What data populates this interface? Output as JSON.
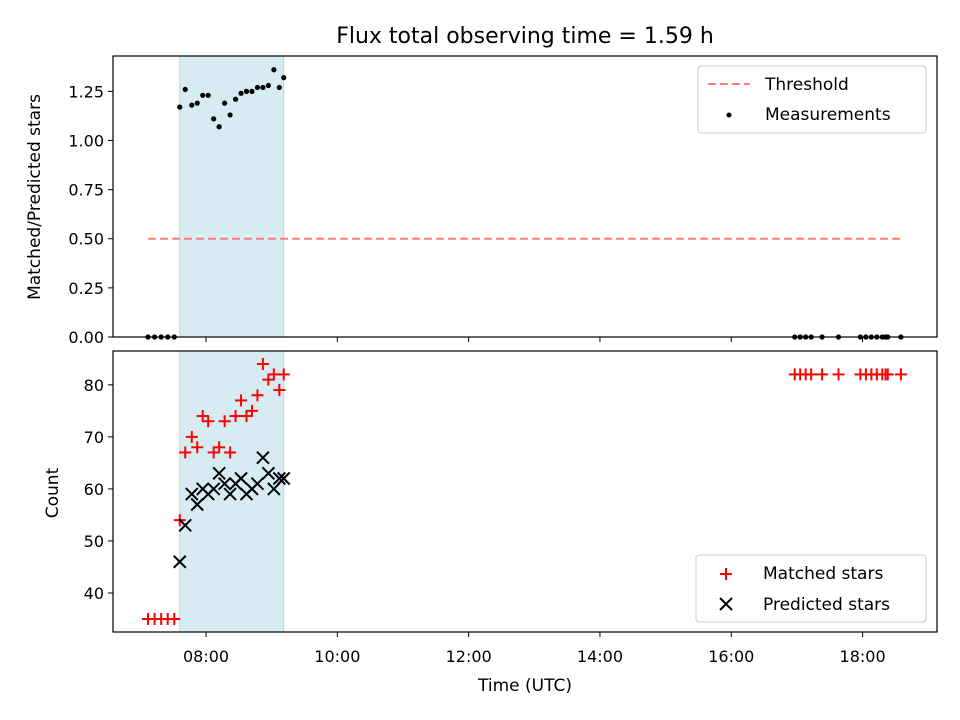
{
  "chart_data": [
    {
      "type": "scatter",
      "title": "Flux total observing time = 1.59 h",
      "xlabel": "",
      "ylabel": "Matched/Predicted stars",
      "xlim": [
        "06:35",
        "19:08"
      ],
      "ylim": [
        0,
        1.43
      ],
      "yticks": [
        "0.00",
        "0.25",
        "0.50",
        "0.75",
        "1.00",
        "1.25"
      ],
      "ytick_values": [
        0,
        0.25,
        0.5,
        0.75,
        1.0,
        1.25
      ],
      "xtick_values": [
        "08:00",
        "10:00",
        "12:00",
        "14:00",
        "16:00",
        "18:00"
      ],
      "legend_position": "top-right",
      "shaded_interval": [
        "07:36",
        "09:11"
      ],
      "threshold": {
        "name": "Threshold",
        "y": 0.5,
        "x_range": [
          "07:07",
          "18:35"
        ],
        "color": "#ff7f7f",
        "style": "dashed"
      },
      "series": [
        {
          "name": "Measurements",
          "color": "#000000",
          "marker": "dot",
          "points": [
            [
              "07:07",
              0
            ],
            [
              "07:13",
              0
            ],
            [
              "07:19",
              0
            ],
            [
              "07:25",
              0
            ],
            [
              "07:31",
              0
            ],
            [
              "07:36",
              1.17
            ],
            [
              "07:41",
              1.26
            ],
            [
              "07:47",
              1.18
            ],
            [
              "07:52",
              1.19
            ],
            [
              "07:57",
              1.23
            ],
            [
              "08:02",
              1.23
            ],
            [
              "08:07",
              1.11
            ],
            [
              "08:12",
              1.07
            ],
            [
              "08:17",
              1.19
            ],
            [
              "08:22",
              1.13
            ],
            [
              "08:27",
              1.21
            ],
            [
              "08:32",
              1.24
            ],
            [
              "08:37",
              1.25
            ],
            [
              "08:42",
              1.25
            ],
            [
              "08:47",
              1.27
            ],
            [
              "08:52",
              1.27
            ],
            [
              "08:57",
              1.28
            ],
            [
              "09:02",
              1.36
            ],
            [
              "09:07",
              1.27
            ],
            [
              "09:11",
              1.32
            ],
            [
              "16:58",
              0
            ],
            [
              "17:03",
              0
            ],
            [
              "17:08",
              0
            ],
            [
              "17:13",
              0
            ],
            [
              "17:23",
              0
            ],
            [
              "17:38",
              0
            ],
            [
              "17:58",
              0
            ],
            [
              "18:03",
              0
            ],
            [
              "18:08",
              0
            ],
            [
              "18:13",
              0
            ],
            [
              "18:18",
              0
            ],
            [
              "18:21",
              0
            ],
            [
              "18:23",
              0
            ],
            [
              "18:35",
              0
            ]
          ]
        }
      ]
    },
    {
      "type": "scatter",
      "title": "",
      "xlabel": "Time (UTC)",
      "ylabel": "Count",
      "xlim": [
        "06:35",
        "19:08"
      ],
      "ylim": [
        32.5,
        86.5
      ],
      "yticks": [
        "40",
        "50",
        "60",
        "70",
        "80"
      ],
      "ytick_values": [
        40,
        50,
        60,
        70,
        80
      ],
      "xticks": [
        "08:00",
        "10:00",
        "12:00",
        "14:00",
        "16:00",
        "18:00"
      ],
      "xtick_values": [
        "08:00",
        "10:00",
        "12:00",
        "14:00",
        "16:00",
        "18:00"
      ],
      "legend_position": "bottom-right",
      "shaded_interval": [
        "07:36",
        "09:11"
      ],
      "series": [
        {
          "name": "Matched stars",
          "color": "#ff0000",
          "marker": "plus",
          "points": [
            [
              "07:07",
              35
            ],
            [
              "07:13",
              35
            ],
            [
              "07:19",
              35
            ],
            [
              "07:25",
              35
            ],
            [
              "07:31",
              35
            ],
            [
              "07:36",
              54
            ],
            [
              "07:41",
              67
            ],
            [
              "07:47",
              70
            ],
            [
              "07:52",
              68
            ],
            [
              "07:57",
              74
            ],
            [
              "08:02",
              73
            ],
            [
              "08:07",
              67
            ],
            [
              "08:12",
              68
            ],
            [
              "08:17",
              73
            ],
            [
              "08:22",
              67
            ],
            [
              "08:27",
              74
            ],
            [
              "08:32",
              77
            ],
            [
              "08:37",
              74
            ],
            [
              "08:42",
              75
            ],
            [
              "08:47",
              78
            ],
            [
              "08:52",
              84
            ],
            [
              "08:57",
              81
            ],
            [
              "09:02",
              82
            ],
            [
              "09:07",
              79
            ],
            [
              "09:11",
              82
            ],
            [
              "16:58",
              82
            ],
            [
              "17:03",
              82
            ],
            [
              "17:08",
              82
            ],
            [
              "17:13",
              82
            ],
            [
              "17:23",
              82
            ],
            [
              "17:38",
              82
            ],
            [
              "17:58",
              82
            ],
            [
              "18:03",
              82
            ],
            [
              "18:08",
              82
            ],
            [
              "18:13",
              82
            ],
            [
              "18:18",
              82
            ],
            [
              "18:21",
              82
            ],
            [
              "18:23",
              82
            ],
            [
              "18:35",
              82
            ]
          ]
        },
        {
          "name": "Predicted stars",
          "color": "#000000",
          "marker": "x",
          "points": [
            [
              "07:36",
              46
            ],
            [
              "07:41",
              53
            ],
            [
              "07:47",
              59
            ],
            [
              "07:52",
              57
            ],
            [
              "07:57",
              60
            ],
            [
              "08:02",
              59
            ],
            [
              "08:07",
              60
            ],
            [
              "08:12",
              63
            ],
            [
              "08:17",
              61
            ],
            [
              "08:22",
              59
            ],
            [
              "08:27",
              61
            ],
            [
              "08:32",
              62
            ],
            [
              "08:37",
              59
            ],
            [
              "08:42",
              60
            ],
            [
              "08:47",
              61
            ],
            [
              "08:52",
              66
            ],
            [
              "08:57",
              63
            ],
            [
              "09:02",
              60
            ],
            [
              "09:07",
              62
            ],
            [
              "09:11",
              62
            ]
          ]
        }
      ]
    }
  ]
}
